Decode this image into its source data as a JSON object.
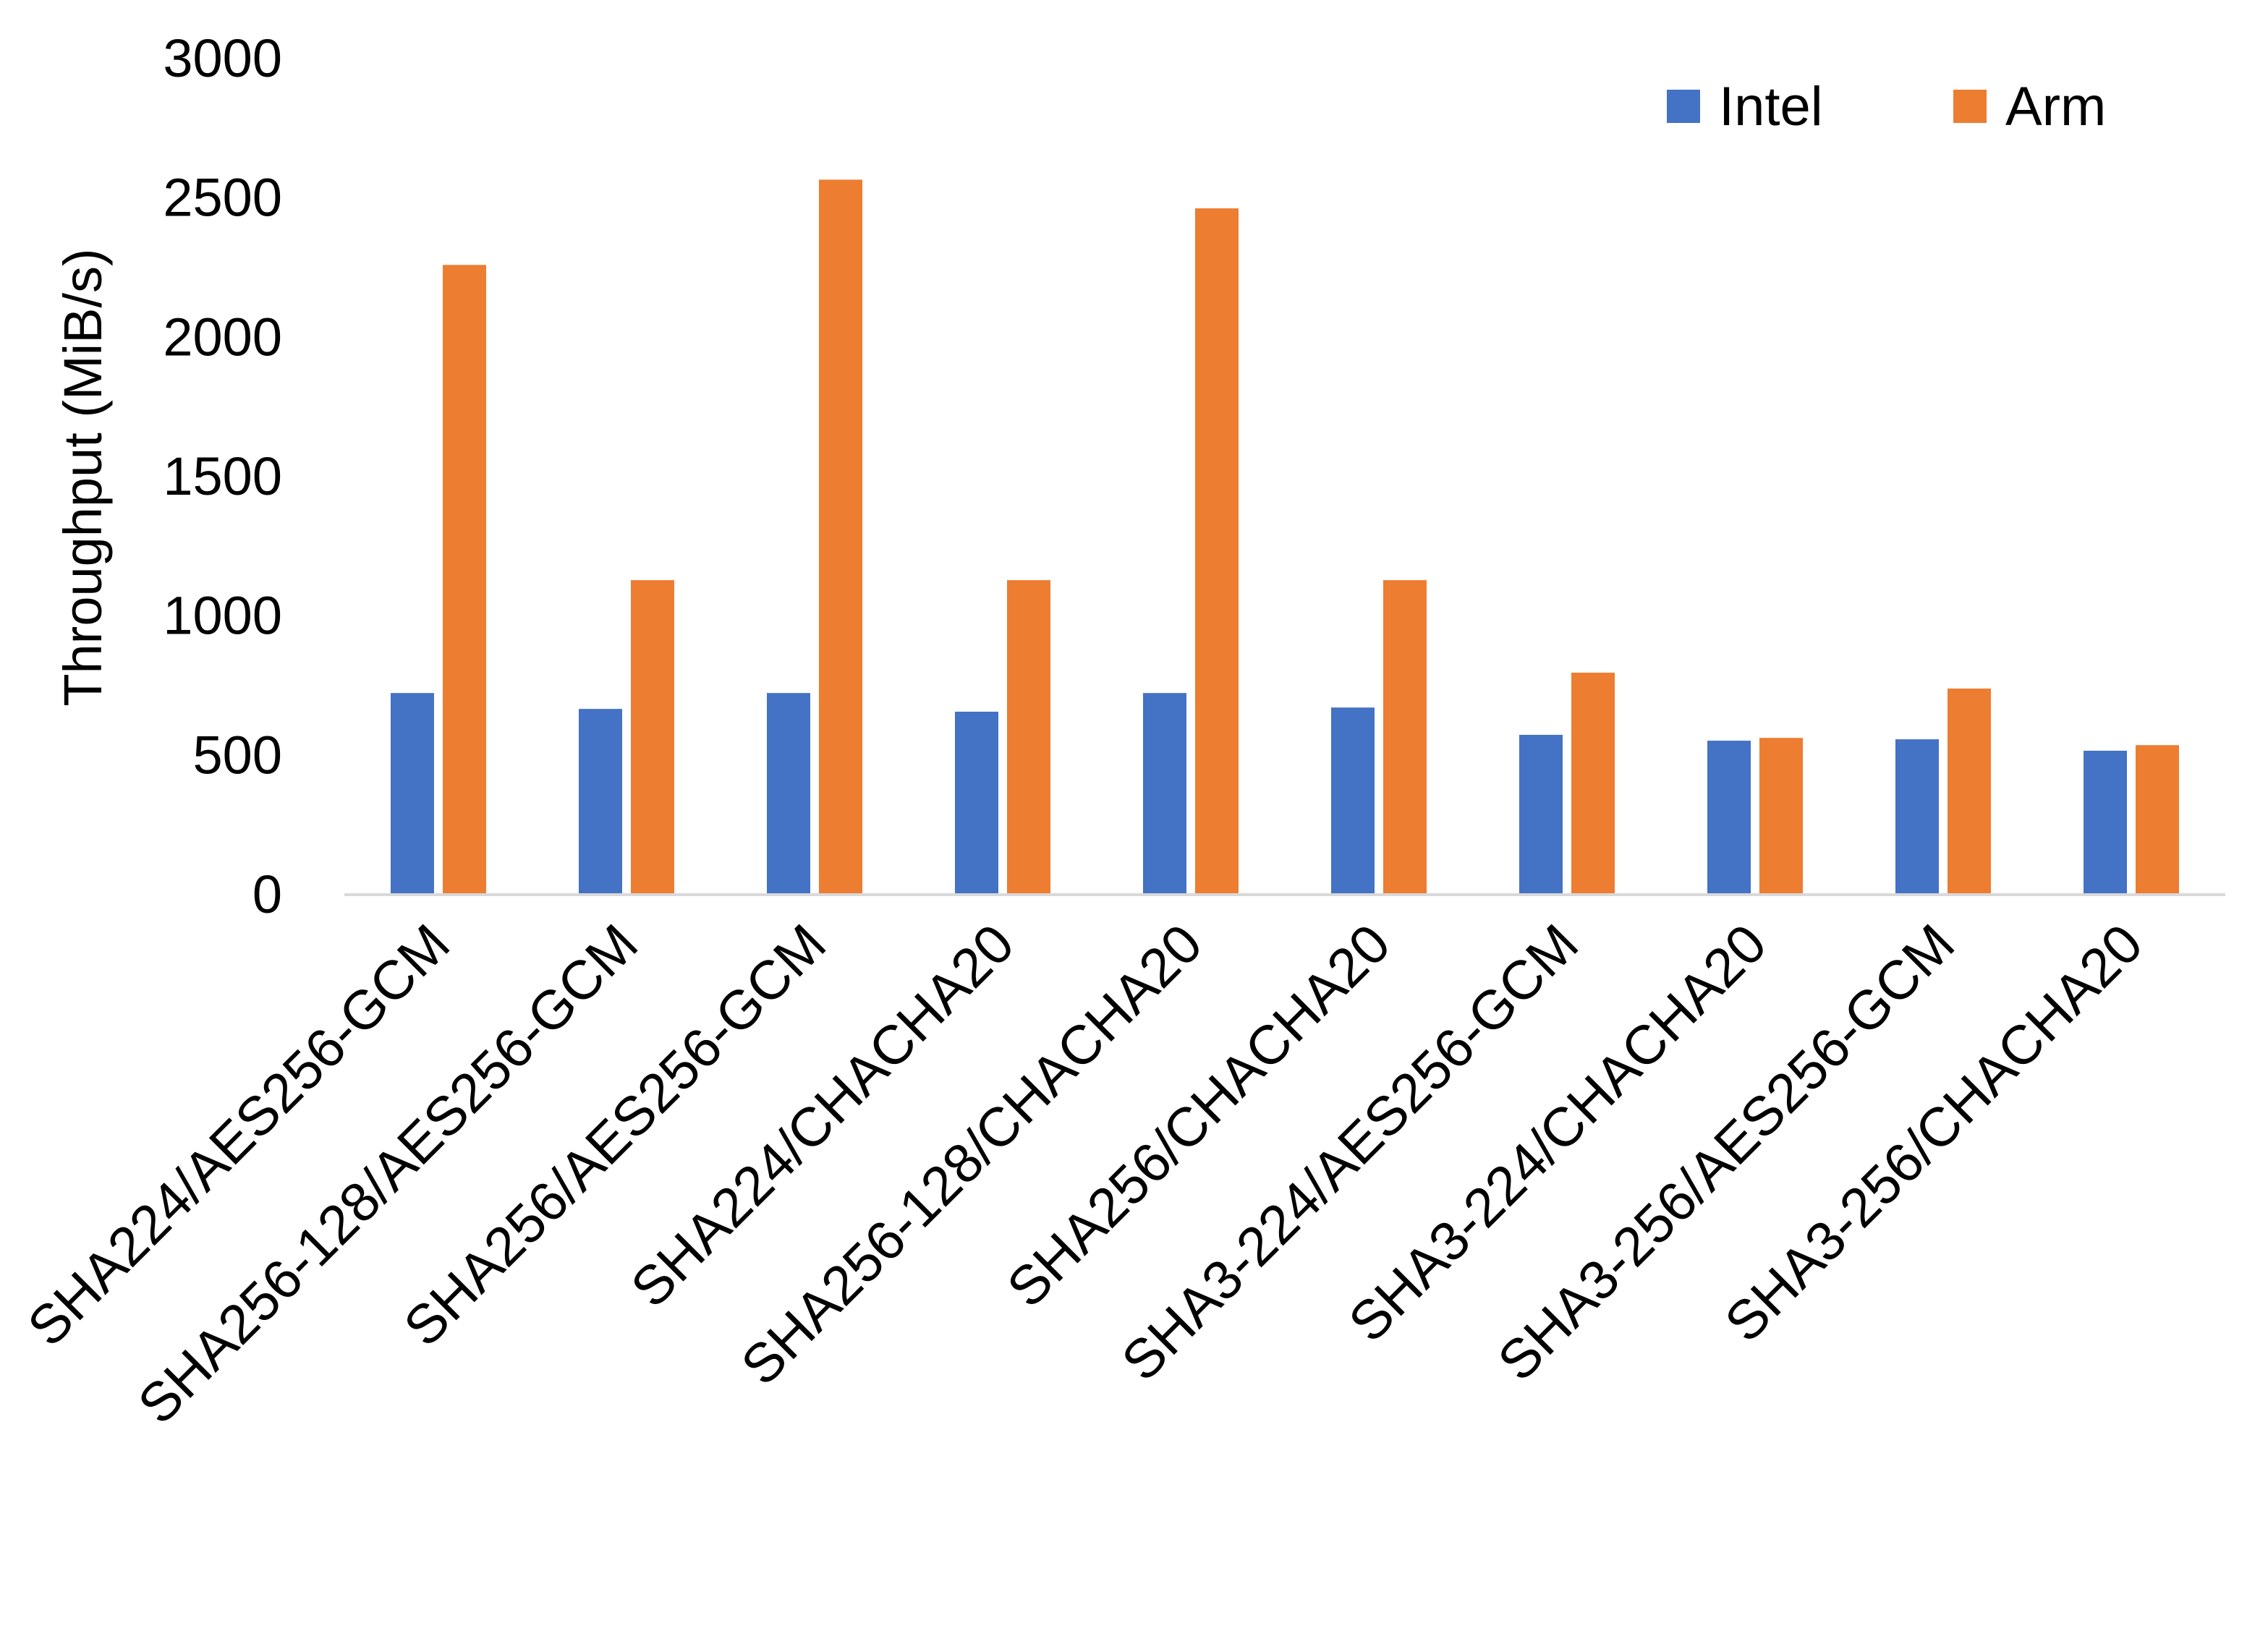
{
  "chart_data": {
    "type": "bar",
    "title": "",
    "xlabel": "",
    "ylabel": "Throughput (MiB/s)",
    "ylim": [
      0,
      3000
    ],
    "yticks": [
      "0",
      "500",
      "1000",
      "1500",
      "2000",
      "2500",
      "3000"
    ],
    "grid": false,
    "legend_position": "top-right",
    "categories": [
      "SHA224/AES256-GCM",
      "SHA256-128/AES256-GCM",
      "SHA256/AES256-GCM",
      "SHA224/CHACHA20",
      "SHA256-128/CHACHA20",
      "SHA256/CHACHA20",
      "SHA3-224/AES256-GCM",
      "SHA3-224/CHACHA20",
      "SHA3-256/AES256-GCM",
      "SHA3-256/CHACHA20"
    ],
    "series": [
      {
        "name": "Intel",
        "color": "#4472C4",
        "values": [
          721,
          664,
          721,
          654,
          721,
          669,
          571,
          550,
          555,
          514
        ]
      },
      {
        "name": "Arm",
        "color": "#ED7D31",
        "values": [
          2257,
          1126,
          2563,
          1126,
          2460,
          1126,
          794,
          560,
          737,
          534
        ]
      }
    ]
  }
}
